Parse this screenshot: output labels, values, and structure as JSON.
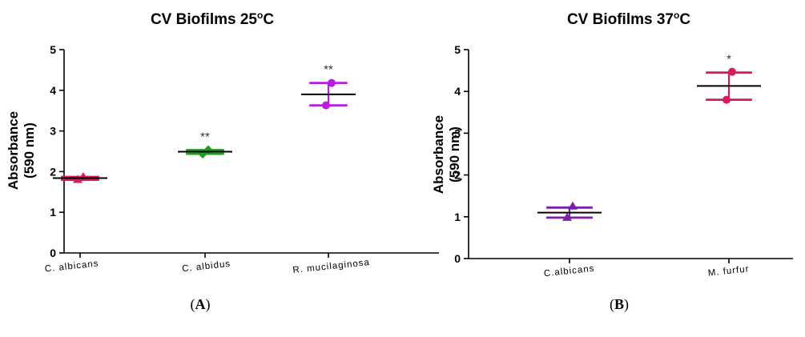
{
  "chart_data": [
    {
      "type": "scatter",
      "panel_label": "A",
      "title": "CV Biofilms 25°C",
      "title_main": "CV Biofilms 25",
      "title_sup": "o",
      "title_tail": "C",
      "ylabel_line1": "Absorbance",
      "ylabel_line2": "(590 nm)",
      "ylim": [
        0,
        5
      ],
      "yticks": [
        "0",
        "1",
        "2",
        "3",
        "4",
        "5"
      ],
      "categories": [
        "C. albicans",
        "C. albidus",
        "R. mucilaginosa"
      ],
      "series": [
        {
          "category": "C. albicans",
          "color": "#d81b60",
          "points": [
            1.87,
            1.8
          ],
          "mean": 1.84,
          "sd_low": 1.8,
          "sd_high": 1.87,
          "marker": "triangle",
          "significance": ""
        },
        {
          "category": "C. albidus",
          "color": "#1e9c1e",
          "points": [
            2.53,
            2.44
          ],
          "mean": 2.49,
          "sd_low": 2.44,
          "sd_high": 2.53,
          "marker": "diamond",
          "significance": "**"
        },
        {
          "category": "R. mucilaginosa",
          "color": "#b81ee0",
          "points": [
            4.18,
            3.63
          ],
          "mean": 3.9,
          "sd_low": 3.63,
          "sd_high": 4.18,
          "marker": "circle",
          "significance": "**"
        }
      ]
    },
    {
      "type": "scatter",
      "panel_label": "B",
      "title": "CV Biofilms 37°C",
      "title_main": "CV Biofilms 37",
      "title_sup": "o",
      "title_tail": "C",
      "ylabel_line1": "Absorbance",
      "ylabel_line2": "(590 nm)",
      "ylim": [
        0,
        5
      ],
      "yticks": [
        "0",
        "1",
        "2",
        "3",
        "4",
        "5"
      ],
      "categories": [
        "C.albicans",
        "M. furfur"
      ],
      "series": [
        {
          "category": "C.albicans",
          "color": "#7a1fa8",
          "points": [
            1.25,
            0.98
          ],
          "mean": 1.1,
          "sd_low": 0.98,
          "sd_high": 1.22,
          "marker": "triangle",
          "significance": ""
        },
        {
          "category": "M. furfur",
          "color": "#d81b60",
          "points": [
            4.47,
            3.8
          ],
          "mean": 4.13,
          "sd_low": 3.8,
          "sd_high": 4.45,
          "marker": "circle",
          "significance": "*"
        }
      ]
    }
  ]
}
